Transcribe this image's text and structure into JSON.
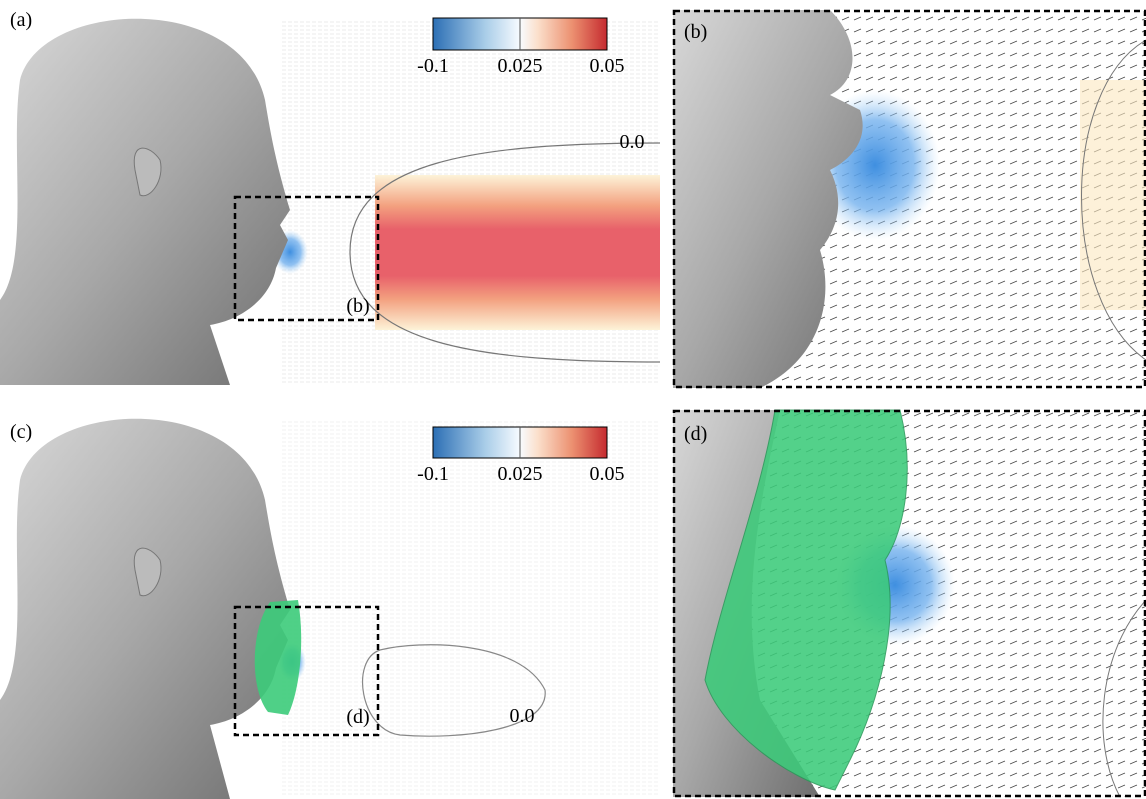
{
  "panels": [
    {
      "label": "(a)",
      "colorbar": {
        "ticks": [
          "-0.1",
          "0.025",
          "0.05"
        ]
      },
      "contour_label": "0.0",
      "inset_label": "(b)"
    },
    {
      "label": "(b)"
    },
    {
      "label": "(c)",
      "colorbar": {
        "ticks": [
          "-0.1",
          "0.025",
          "0.05"
        ]
      },
      "contour_label": "0.0",
      "inset_label": "(d)"
    },
    {
      "label": "(d)"
    }
  ]
}
